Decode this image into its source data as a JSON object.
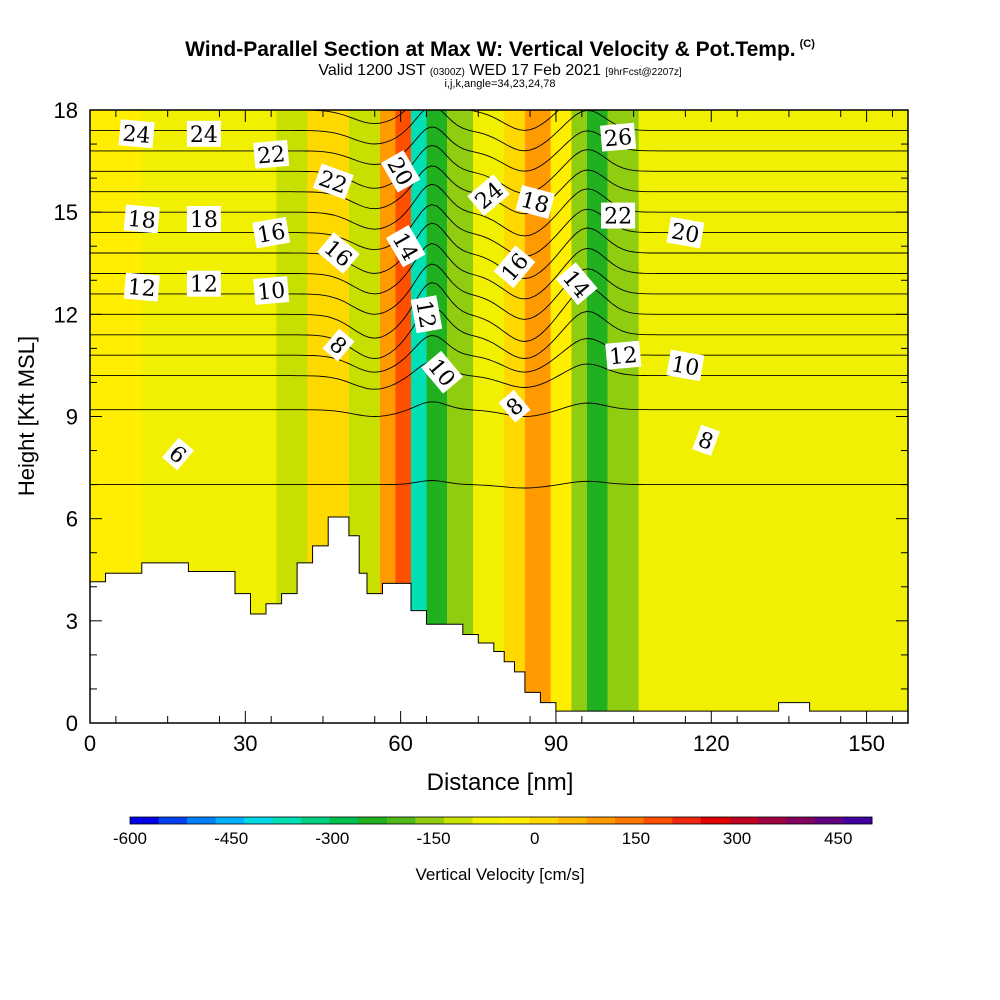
{
  "header": {
    "title": "Wind-Parallel Section at Max W: Vertical Velocity & Pot.Temp.",
    "title_tag": "(C)",
    "valid_main": "Valid 1200 JST",
    "valid_z": "(0300Z)",
    "valid_date": "WED 17 Feb 2021",
    "forecast": "[9hrFcst@2207z]",
    "indices": "i,j,k,angle=34,23,24,78"
  },
  "chart_data": {
    "type": "heatmap",
    "xlabel": "Distance [nm]",
    "ylabel": "Height [Kft MSL]",
    "xlim": [
      0,
      158
    ],
    "ylim": [
      0,
      18
    ],
    "x_ticks": [
      "0",
      "30",
      "60",
      "90",
      "120",
      "150"
    ],
    "y_ticks": [
      "0",
      "3",
      "6",
      "9",
      "12",
      "15",
      "18"
    ],
    "colorbar": {
      "label": "Vertical Velocity [cm/s]",
      "ticks": [
        "-600",
        "-450",
        "-300",
        "-150",
        "0",
        "150",
        "300",
        "450"
      ],
      "min": -600,
      "max": 500,
      "step": 50,
      "colors": [
        "#0000e6",
        "#0040f0",
        "#0080f8",
        "#00b0ff",
        "#00d8e6",
        "#00e0b4",
        "#00d080",
        "#00c050",
        "#20b020",
        "#50b818",
        "#90cc10",
        "#c8e000",
        "#f0f000",
        "#ffee00",
        "#ffd800",
        "#ffbb00",
        "#ff9a00",
        "#ff7800",
        "#ff5000",
        "#f02810",
        "#e00000",
        "#c00020",
        "#a00040",
        "#800060",
        "#600080",
        "#4000a0"
      ]
    },
    "velocity_bands": [
      {
        "x": 0,
        "w": 10,
        "value": 60
      },
      {
        "x": 10,
        "w": 26,
        "value": 40
      },
      {
        "x": 36,
        "w": 6,
        "value": -40
      },
      {
        "x": 42,
        "w": 8,
        "value": 110
      },
      {
        "x": 50,
        "w": 6,
        "value": -30
      },
      {
        "x": 56,
        "w": 3,
        "value": 200
      },
      {
        "x": 59,
        "w": 3,
        "value": 300
      },
      {
        "x": 62,
        "w": 3,
        "value": -350
      },
      {
        "x": 65,
        "w": 4,
        "value": -180
      },
      {
        "x": 69,
        "w": 5,
        "value": -80
      },
      {
        "x": 74,
        "w": 6,
        "value": 20
      },
      {
        "x": 80,
        "w": 4,
        "value": 140
      },
      {
        "x": 84,
        "w": 5,
        "value": 230
      },
      {
        "x": 89,
        "w": 4,
        "value": 80
      },
      {
        "x": 93,
        "w": 3,
        "value": -60
      },
      {
        "x": 96,
        "w": 4,
        "value": -160
      },
      {
        "x": 100,
        "w": 6,
        "value": -70
      },
      {
        "x": 106,
        "w": 20,
        "value": 10
      },
      {
        "x": 126,
        "w": 14,
        "value": 40
      },
      {
        "x": 140,
        "w": 18,
        "value": 20
      }
    ],
    "contour_labels": [
      {
        "text": "24",
        "x": 9,
        "y": 17.3,
        "rot": 5
      },
      {
        "text": "24",
        "x": 22,
        "y": 17.3,
        "rot": 0
      },
      {
        "text": "22",
        "x": 35,
        "y": 16.7,
        "rot": -5
      },
      {
        "text": "22",
        "x": 47,
        "y": 15.9,
        "rot": 20
      },
      {
        "text": "20",
        "x": 60,
        "y": 16.2,
        "rot": 60
      },
      {
        "text": "24",
        "x": 77,
        "y": 15.5,
        "rot": -40
      },
      {
        "text": "18",
        "x": 86,
        "y": 15.3,
        "rot": 15
      },
      {
        "text": "26",
        "x": 102,
        "y": 17.2,
        "rot": -5
      },
      {
        "text": "22",
        "x": 102,
        "y": 14.9,
        "rot": 0
      },
      {
        "text": "20",
        "x": 115,
        "y": 14.4,
        "rot": 10
      },
      {
        "text": "18",
        "x": 10,
        "y": 14.8,
        "rot": 5
      },
      {
        "text": "18",
        "x": 22,
        "y": 14.8,
        "rot": 0
      },
      {
        "text": "16",
        "x": 35,
        "y": 14.4,
        "rot": -10
      },
      {
        "text": "16",
        "x": 48,
        "y": 13.8,
        "rot": 40
      },
      {
        "text": "14",
        "x": 61,
        "y": 14.0,
        "rot": 60
      },
      {
        "text": "16",
        "x": 82,
        "y": 13.4,
        "rot": -50
      },
      {
        "text": "14",
        "x": 94,
        "y": 12.9,
        "rot": 50
      },
      {
        "text": "12",
        "x": 10,
        "y": 12.8,
        "rot": 5
      },
      {
        "text": "12",
        "x": 22,
        "y": 12.9,
        "rot": 0
      },
      {
        "text": "10",
        "x": 35,
        "y": 12.7,
        "rot": -5
      },
      {
        "text": "12",
        "x": 65,
        "y": 12.0,
        "rot": 80
      },
      {
        "text": "12",
        "x": 103,
        "y": 10.8,
        "rot": -5
      },
      {
        "text": "10",
        "x": 115,
        "y": 10.5,
        "rot": 10
      },
      {
        "text": "8",
        "x": 48,
        "y": 11.1,
        "rot": 40
      },
      {
        "text": "10",
        "x": 68,
        "y": 10.3,
        "rot": 50
      },
      {
        "text": "8",
        "x": 82,
        "y": 9.3,
        "rot": -40
      },
      {
        "text": "6",
        "x": 17,
        "y": 7.9,
        "rot": 40
      },
      {
        "text": "8",
        "x": 119,
        "y": 8.3,
        "rot": 20
      }
    ],
    "contour_rows": [
      {
        "y": 18,
        "dip": 0.4,
        "amp": 1.2
      },
      {
        "y": 17.4,
        "dip": 0.4,
        "amp": 1.2
      },
      {
        "y": 16.8,
        "dip": 0.4,
        "amp": 1.2
      },
      {
        "y": 16.2,
        "dip": 0.5,
        "amp": 1.3
      },
      {
        "y": 15.6,
        "dip": 0.5,
        "amp": 1.3
      },
      {
        "y": 15.0,
        "dip": 0.5,
        "amp": 1.4
      },
      {
        "y": 14.4,
        "dip": 0.5,
        "amp": 1.4
      },
      {
        "y": 13.8,
        "dip": 0.6,
        "amp": 1.5
      },
      {
        "y": 13.2,
        "dip": 0.6,
        "amp": 1.5
      },
      {
        "y": 12.6,
        "dip": 0.6,
        "amp": 1.5
      },
      {
        "y": 12.0,
        "dip": 0.7,
        "amp": 1.6
      },
      {
        "y": 11.4,
        "dip": 0.7,
        "amp": 1.4
      },
      {
        "y": 10.8,
        "dip": 0.5,
        "amp": 1.0
      },
      {
        "y": 10.2,
        "dip": 0.4,
        "amp": 0.7
      },
      {
        "y": 9.2,
        "dip": 0.2,
        "amp": 0.4
      },
      {
        "y": 7.0,
        "dip": 0.0,
        "amp": 0.2
      }
    ],
    "terrain": [
      [
        0,
        4.15
      ],
      [
        3,
        4.4
      ],
      [
        10,
        4.7
      ],
      [
        19,
        4.45
      ],
      [
        28,
        3.8
      ],
      [
        31,
        3.2
      ],
      [
        34,
        3.5
      ],
      [
        37,
        3.8
      ],
      [
        40,
        4.7
      ],
      [
        43,
        5.2
      ],
      [
        46,
        6.05
      ],
      [
        50,
        5.5
      ],
      [
        52,
        4.4
      ],
      [
        53.5,
        3.8
      ],
      [
        56.5,
        4.1
      ],
      [
        62,
        3.3
      ],
      [
        65,
        2.9
      ],
      [
        72,
        2.6
      ],
      [
        75,
        2.35
      ],
      [
        78,
        2.1
      ],
      [
        80,
        1.8
      ],
      [
        82,
        1.5
      ],
      [
        84,
        0.9
      ],
      [
        87,
        0.6
      ],
      [
        90,
        0.35
      ],
      [
        133,
        0.6
      ],
      [
        139,
        0.35
      ],
      [
        158,
        0.35
      ]
    ]
  }
}
